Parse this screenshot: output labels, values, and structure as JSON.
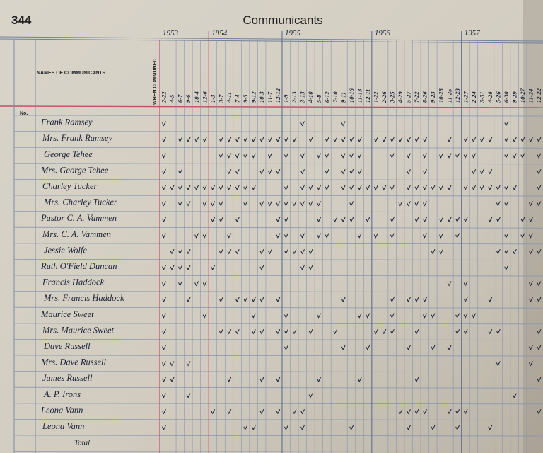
{
  "header": {
    "page_number": "344",
    "title": "Communicants"
  },
  "table": {
    "names_heading": "NAMES OF COMMUNICANTS",
    "date_heading": "WHEN COMMUNED",
    "number_heading": "No.",
    "years": [
      {
        "year": "1953",
        "dates": [
          "2-22",
          "4-5",
          "6-7",
          "9-6",
          "10-4",
          "12-6"
        ]
      },
      {
        "year": "1954",
        "dates": [
          "1-3",
          "3-7",
          "4-11",
          "7-4",
          "9-5",
          "9-12",
          "10-3",
          "11-7",
          "12-12"
        ]
      },
      {
        "year": "1955",
        "dates": [
          "1-9",
          "2-13",
          "3-13",
          "4-10",
          "5-8",
          "6-12",
          "7-10",
          "9-11",
          "10-16",
          "11-13",
          "12-11"
        ]
      },
      {
        "year": "1956",
        "dates": [
          "1-22",
          "2-26",
          "3-25",
          "4-29",
          "5-27",
          "7-22",
          "8-26",
          "9-23",
          "10-28",
          "11-25",
          "12-23"
        ]
      },
      {
        "year": "1957",
        "dates": [
          "1-27",
          "2-24",
          "3-31",
          "4-28",
          "5-26",
          "6-30",
          "9-29",
          "10-27",
          "11-24",
          "12-22"
        ]
      }
    ],
    "rows": [
      "Frank Ramsey",
      "Mrs. Frank Ramsey",
      "George Tehee",
      "Mrs. George Tehee",
      "Charley Tucker",
      "Mrs. Charley Tucker",
      "Pastor C. A. Vammen",
      "Mrs. C. A. Vammen",
      "Jessie Wolfe",
      "Ruth O'Field Duncan",
      "Francis Haddock",
      "Mrs. Francis Haddock",
      "Maurice Sweet",
      "Mrs. Maurice Sweet",
      "Dave Russell",
      "Mrs. Dave Russell",
      "James Russell",
      "A. P. Irons",
      "Leona Vann",
      "Leona Vann"
    ],
    "total_label": "Total"
  }
}
